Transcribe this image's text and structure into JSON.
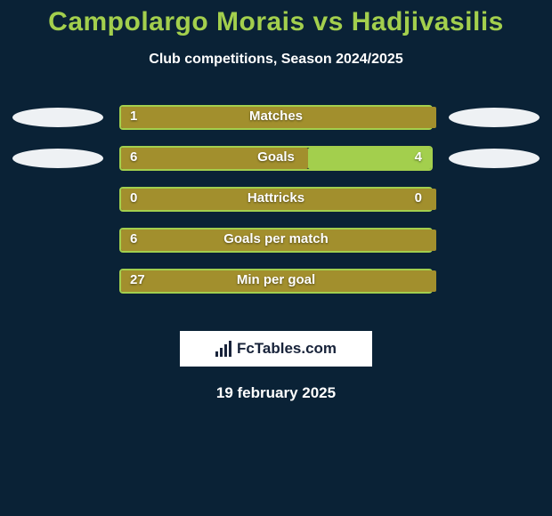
{
  "title": "Campolargo Morais vs Hadjivasilis",
  "subtitle": "Club competitions, Season 2024/2025",
  "logo_text": "FcTables.com",
  "date_text": "19 february 2025",
  "colors": {
    "background": "#0a2236",
    "accent": "#a3cf4d",
    "bar_left": "#a28f2d",
    "bar_right": "#a3cf4d",
    "ellipse": "#eef1f4",
    "text": "#ffffff"
  },
  "typography": {
    "title_fontsize": 30,
    "subtitle_fontsize": 16,
    "stat_fontsize": 15,
    "date_fontsize": 17
  },
  "stats": [
    {
      "label": "Matches",
      "left_val": "1",
      "right_val": "",
      "left_pct": 100,
      "right_pct": 0,
      "show_left_ellipse": true,
      "show_right_ellipse": true
    },
    {
      "label": "Goals",
      "left_val": "6",
      "right_val": "4",
      "left_pct": 60,
      "right_pct": 40,
      "show_left_ellipse": true,
      "show_right_ellipse": true
    },
    {
      "label": "Hattricks",
      "left_val": "0",
      "right_val": "0",
      "left_pct": 100,
      "right_pct": 0,
      "show_left_ellipse": false,
      "show_right_ellipse": false
    },
    {
      "label": "Goals per match",
      "left_val": "6",
      "right_val": "",
      "left_pct": 100,
      "right_pct": 0,
      "show_left_ellipse": false,
      "show_right_ellipse": false
    },
    {
      "label": "Min per goal",
      "left_val": "27",
      "right_val": "",
      "left_pct": 100,
      "right_pct": 0,
      "show_left_ellipse": false,
      "show_right_ellipse": false
    }
  ]
}
